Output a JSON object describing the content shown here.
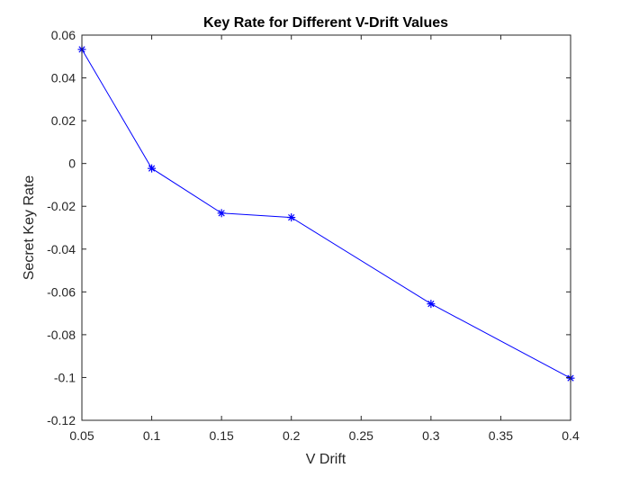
{
  "chart_data": {
    "type": "line",
    "title": "Key Rate for Different V-Drift Values",
    "xlabel": "V Drift",
    "ylabel": "Secret Key Rate",
    "xlim": [
      0.05,
      0.4
    ],
    "ylim": [
      -0.12,
      0.06
    ],
    "xticks": [
      0.05,
      0.1,
      0.15,
      0.2,
      0.25,
      0.3,
      0.35,
      0.4
    ],
    "xtick_labels": [
      "0.05",
      "0.1",
      "0.15",
      "0.2",
      "0.25",
      "0.3",
      "0.35",
      "0.4"
    ],
    "yticks": [
      0.06,
      0.04,
      0.02,
      0,
      -0.02,
      -0.04,
      -0.06,
      -0.08,
      -0.1,
      -0.12
    ],
    "ytick_labels": [
      "0.06",
      "0.04",
      "0.02",
      "0",
      "-0.02",
      "-0.04",
      "-0.06",
      "-0.08",
      "-0.1",
      "-0.12"
    ],
    "grid": false,
    "series": [
      {
        "color": "#0000ff",
        "marker": "asterisk",
        "x": [
          0.05,
          0.1,
          0.15,
          0.2,
          0.3,
          0.4
        ],
        "y": [
          0.0533,
          -0.0023,
          -0.0232,
          -0.0252,
          -0.0656,
          -0.1003
        ]
      }
    ]
  }
}
